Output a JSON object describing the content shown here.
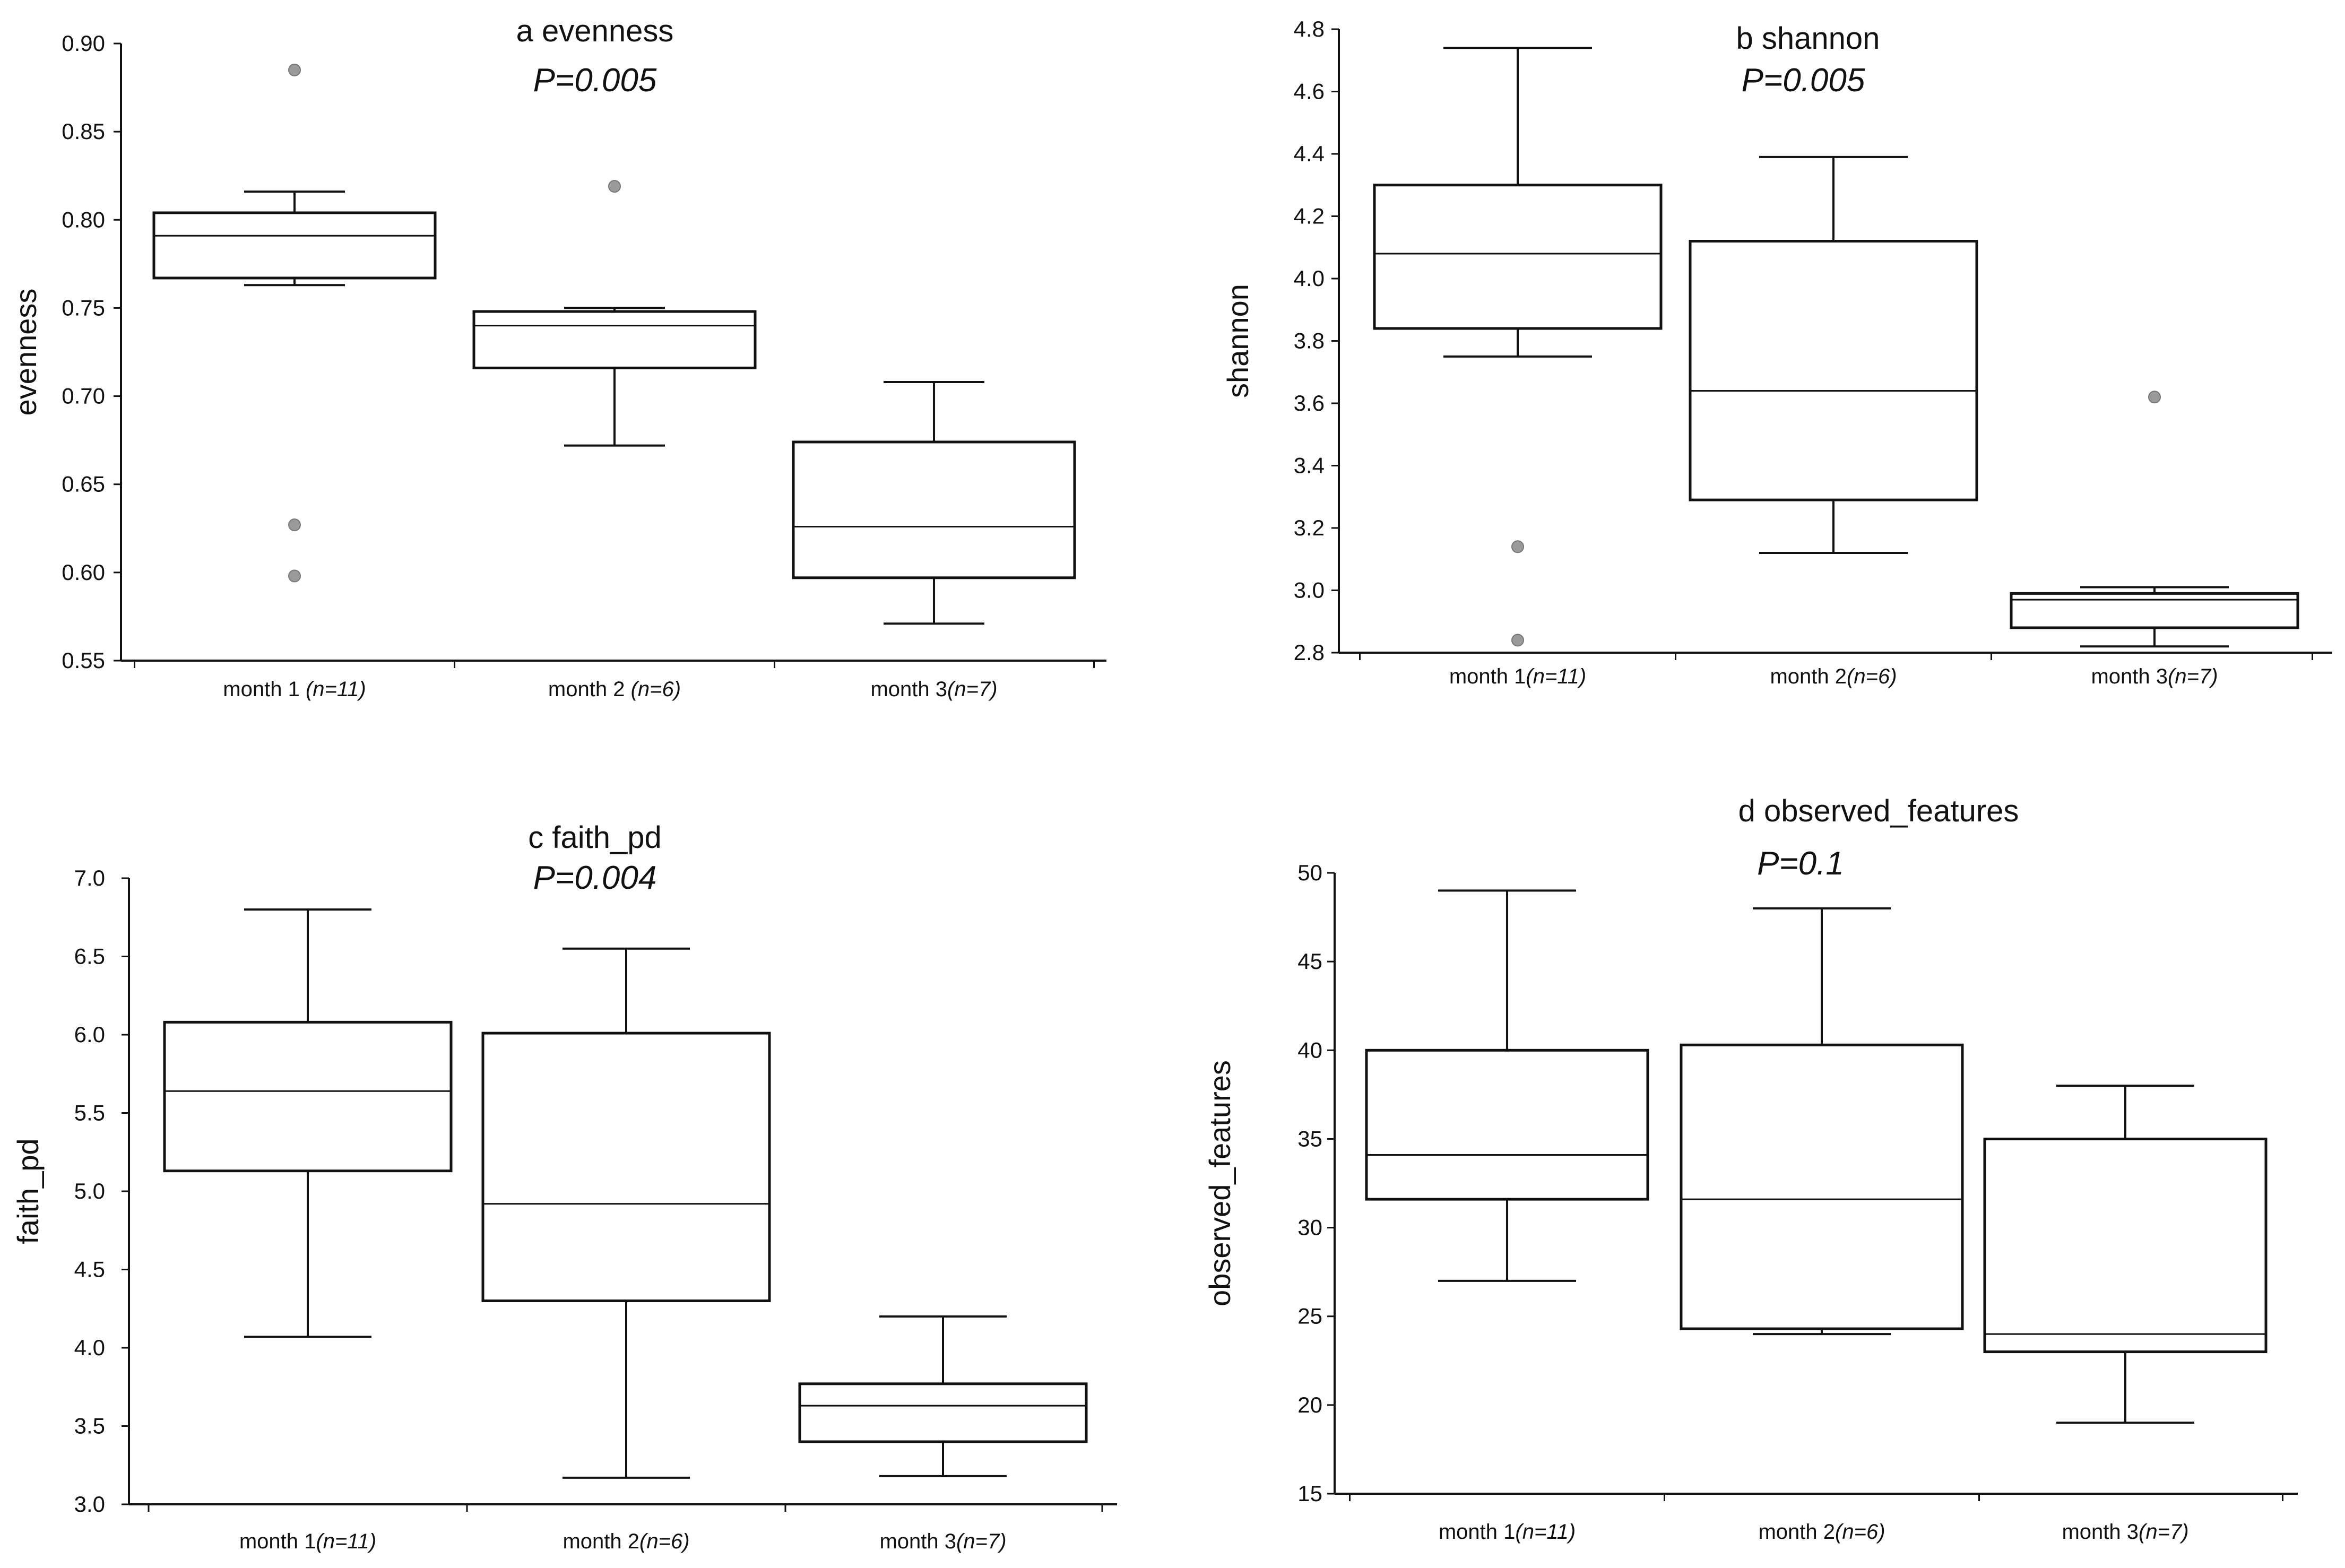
{
  "chart_data": [
    {
      "type": "boxplot",
      "title": "a evenness",
      "pvalue": "P=0.005",
      "ylabel": "evenness",
      "xlabel": "",
      "ylim": [
        0.55,
        0.9
      ],
      "yticks": [
        0.55,
        0.6,
        0.65,
        0.7,
        0.75,
        0.8,
        0.85,
        0.9
      ],
      "ytick_labels": [
        "0.55",
        "0.60",
        "0.65",
        "0.70",
        "0.75",
        "0.80",
        "0.85",
        "0.90"
      ],
      "categories": [
        {
          "label": "month 1 ",
          "n": "(n=11)"
        },
        {
          "label": "month 2 ",
          "n": "(n=6)"
        },
        {
          "label": "month 3",
          "n": "(n=7)"
        }
      ],
      "boxes": [
        {
          "whisker_low": 0.763,
          "q1": 0.767,
          "median": 0.791,
          "q3": 0.804,
          "whisker_high": 0.816,
          "outliers": [
            0.885,
            0.627,
            0.598
          ]
        },
        {
          "whisker_low": 0.672,
          "q1": 0.716,
          "median": 0.74,
          "q3": 0.748,
          "whisker_high": 0.75,
          "outliers": [
            0.819
          ]
        },
        {
          "whisker_low": 0.571,
          "q1": 0.597,
          "median": 0.626,
          "q3": 0.674,
          "whisker_high": 0.708,
          "outliers": []
        }
      ],
      "grid": false,
      "legend": "none"
    },
    {
      "type": "boxplot",
      "title": "b shannon",
      "pvalue": "P=0.005",
      "ylabel": "shannon",
      "xlabel": "",
      "ylim": [
        2.8,
        4.8
      ],
      "yticks": [
        2.8,
        3.0,
        3.2,
        3.4,
        3.6,
        3.8,
        4.0,
        4.2,
        4.4,
        4.6,
        4.8
      ],
      "ytick_labels": [
        "2.8",
        "3.0",
        "3.2",
        "3.4",
        "3.6",
        "3.8",
        "4.0",
        "4.2",
        "4.4",
        "4.6",
        "4.8"
      ],
      "categories": [
        {
          "label": "month 1",
          "n": "(n=11)"
        },
        {
          "label": "month 2",
          "n": "(n=6)"
        },
        {
          "label": "month 3",
          "n": "(n=7)"
        }
      ],
      "boxes": [
        {
          "whisker_low": 3.75,
          "q1": 3.84,
          "median": 4.08,
          "q3": 4.3,
          "whisker_high": 4.74,
          "outliers": [
            3.14,
            2.84
          ]
        },
        {
          "whisker_low": 3.12,
          "q1": 3.29,
          "median": 3.64,
          "q3": 4.12,
          "whisker_high": 4.39,
          "outliers": []
        },
        {
          "whisker_low": 2.82,
          "q1": 2.88,
          "median": 2.97,
          "q3": 2.99,
          "whisker_high": 3.01,
          "outliers": [
            3.62
          ]
        }
      ],
      "grid": false,
      "legend": "none"
    },
    {
      "type": "boxplot",
      "title": "c faith_pd",
      "pvalue": "P=0.004",
      "ylabel": "faith_pd",
      "xlabel": "",
      "ylim": [
        3.0,
        7.0
      ],
      "yticks": [
        3.0,
        3.5,
        4.0,
        4.5,
        5.0,
        5.5,
        6.0,
        6.5,
        7.0
      ],
      "ytick_labels": [
        "3.0",
        "3.5",
        "4.0",
        "4.5",
        "5.0",
        "5.5",
        "6.0",
        "6.5",
        "7.0"
      ],
      "categories": [
        {
          "label": "month 1",
          "n": "(n=11)"
        },
        {
          "label": "month 2",
          "n": "(n=6)"
        },
        {
          "label": "month 3",
          "n": "(n=7)"
        }
      ],
      "boxes": [
        {
          "whisker_low": 4.07,
          "q1": 5.13,
          "median": 5.64,
          "q3": 6.08,
          "whisker_high": 6.8,
          "outliers": []
        },
        {
          "whisker_low": 3.17,
          "q1": 4.3,
          "median": 4.92,
          "q3": 6.01,
          "whisker_high": 6.55,
          "outliers": []
        },
        {
          "whisker_low": 3.18,
          "q1": 3.4,
          "median": 3.63,
          "q3": 3.77,
          "whisker_high": 4.2,
          "outliers": []
        }
      ],
      "grid": false,
      "legend": "none"
    },
    {
      "type": "boxplot",
      "title": "d observed_features",
      "pvalue": "P=0.1",
      "ylabel": "observed_features",
      "xlabel": "",
      "ylim": [
        15,
        50
      ],
      "yticks": [
        15,
        20,
        25,
        30,
        35,
        40,
        45,
        50
      ],
      "ytick_labels": [
        "15",
        "20",
        "25",
        "30",
        "35",
        "40",
        "45",
        "50"
      ],
      "categories": [
        {
          "label": "month 1",
          "n": "(n=11)"
        },
        {
          "label": "month 2",
          "n": "(n=6)"
        },
        {
          "label": "month 3",
          "n": "(n=7)"
        }
      ],
      "boxes": [
        {
          "whisker_low": 27.0,
          "q1": 31.6,
          "median": 34.1,
          "q3": 40.0,
          "whisker_high": 49.0,
          "outliers": []
        },
        {
          "whisker_low": 24.0,
          "q1": 24.3,
          "median": 31.6,
          "q3": 40.3,
          "whisker_high": 48.0,
          "outliers": []
        },
        {
          "whisker_low": 19.0,
          "q1": 23.0,
          "median": 24.0,
          "q3": 35.0,
          "whisker_high": 38.0,
          "outliers": []
        }
      ],
      "grid": false,
      "legend": "none"
    }
  ]
}
